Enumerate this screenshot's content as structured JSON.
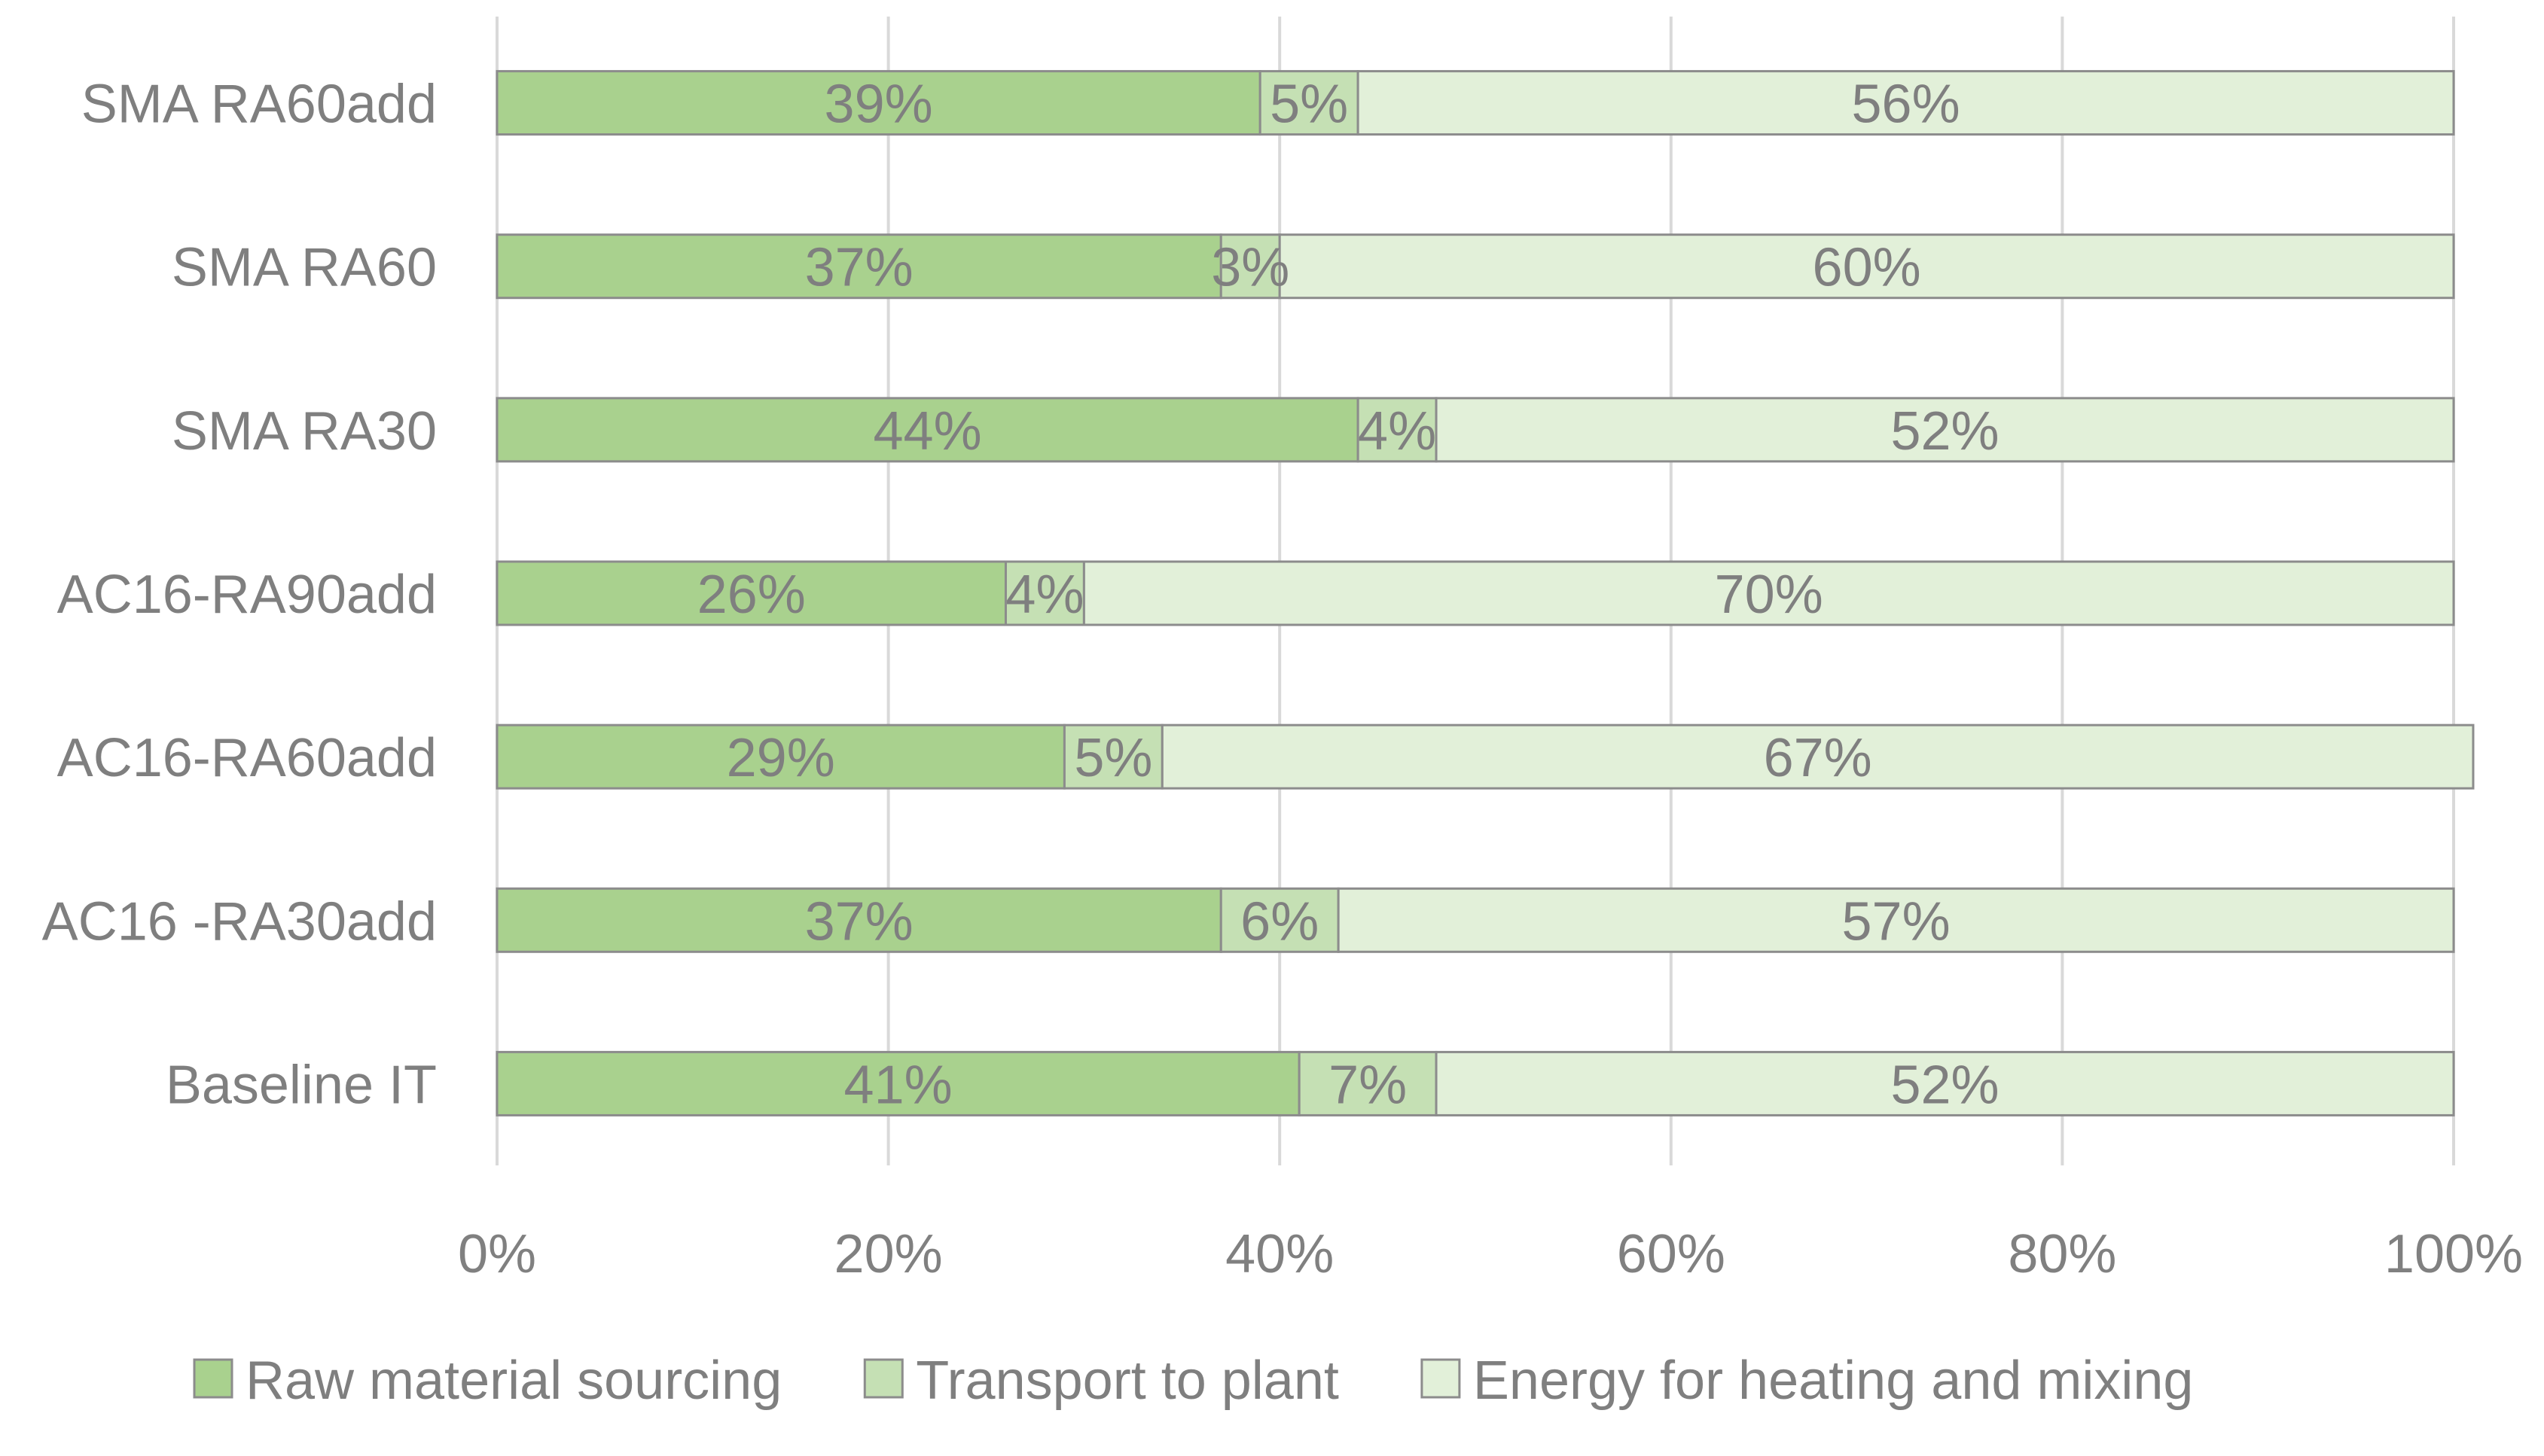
{
  "chart_data": {
    "type": "bar",
    "orientation": "horizontal",
    "stacked": "percent",
    "title": "",
    "xlabel": "",
    "ylabel": "",
    "xlim": [
      0,
      100
    ],
    "grid": true,
    "legend_position": "bottom",
    "categories": [
      "SMA RA60add",
      "SMA RA60",
      "SMA RA30",
      "AC16-RA90add",
      "AC16-RA60add",
      "AC16 -RA30add",
      "Baseline IT"
    ],
    "x_ticks": [
      "0%",
      "20%",
      "40%",
      "60%",
      "80%",
      "100%"
    ],
    "series": [
      {
        "name": "Raw material sourcing",
        "color": "#a9d18e",
        "values": [
          39,
          37,
          44,
          26,
          29,
          37,
          41
        ],
        "labels": [
          "39%",
          "37%",
          "44%",
          "26%",
          "29%",
          "37%",
          "41%"
        ]
      },
      {
        "name": "Transport to plant",
        "color": "#c5e0b4",
        "values": [
          5,
          3,
          4,
          4,
          5,
          6,
          7
        ],
        "labels": [
          "5%",
          "3%",
          "4%",
          "4%",
          "5%",
          "6%",
          "7%"
        ]
      },
      {
        "name": "Energy for heating and mixing",
        "color": "#e2f0d9",
        "values": [
          56,
          60,
          52,
          70,
          67,
          57,
          52
        ],
        "labels": [
          "56%",
          "60%",
          "52%",
          "70%",
          "67%",
          "57%",
          "52%"
        ]
      }
    ]
  }
}
